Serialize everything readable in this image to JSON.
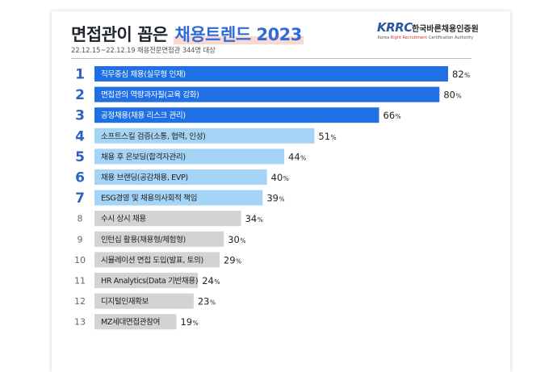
{
  "header": {
    "title_prefix": "면접관이 꼽은",
    "title_highlight": "채용트렌드 2023",
    "subtitle": "22.12.15~22.12.19 채용전문면접관 344명 대상"
  },
  "logo": {
    "mark": "KRRC",
    "name_ko": "한국바른채용인증원",
    "name_en_a": "Korea ",
    "name_en_b": "Right Recruitment",
    "name_en_c": " Certification Authority"
  },
  "colors": {
    "dark_blue": "#1f6fe5",
    "light_blue": "#a6d4f7",
    "gray": "#d3d3d3",
    "rank_blue": "#2a64c6",
    "rank_gray": "#666666"
  },
  "chart_data": {
    "type": "bar",
    "orientation": "horizontal",
    "value_suffix": "%",
    "xlim": [
      0,
      82
    ],
    "categories": [
      "직무중심 채용(실무형 인재)",
      "면접관의 역량과자질(교육 강화)",
      "공정채용(채용 리스크 관리)",
      "소프트스킬 검증(소통, 협력, 인성)",
      "채용 후 온보딩(합격자관리)",
      "채용 브랜딩(공감채용, EVP)",
      "ESG경영 및 채용의사회적 책임",
      "수시 상시 채용",
      "인턴십 활용(채용형/체험형)",
      "시뮬레이션 면접 도입(발표, 토의)",
      "HR Analytics(Data 기반채용)",
      "디지털인재확보",
      "MZ세대면접관참여"
    ],
    "ranks": [
      "1",
      "2",
      "3",
      "4",
      "5",
      "6",
      "7",
      "8",
      "9",
      "10",
      "11",
      "12",
      "13"
    ],
    "values": [
      82,
      80,
      66,
      51,
      44,
      40,
      39,
      34,
      30,
      29,
      24,
      23,
      19
    ],
    "value_labels": [
      "82",
      "80",
      "66",
      "51",
      "44",
      "40",
      "39",
      "34",
      "30",
      "29",
      "24",
      "23",
      "19"
    ],
    "tiers": [
      "dark",
      "dark",
      "dark",
      "light",
      "light",
      "light",
      "light",
      "gray",
      "gray",
      "gray",
      "gray",
      "gray",
      "gray"
    ]
  }
}
